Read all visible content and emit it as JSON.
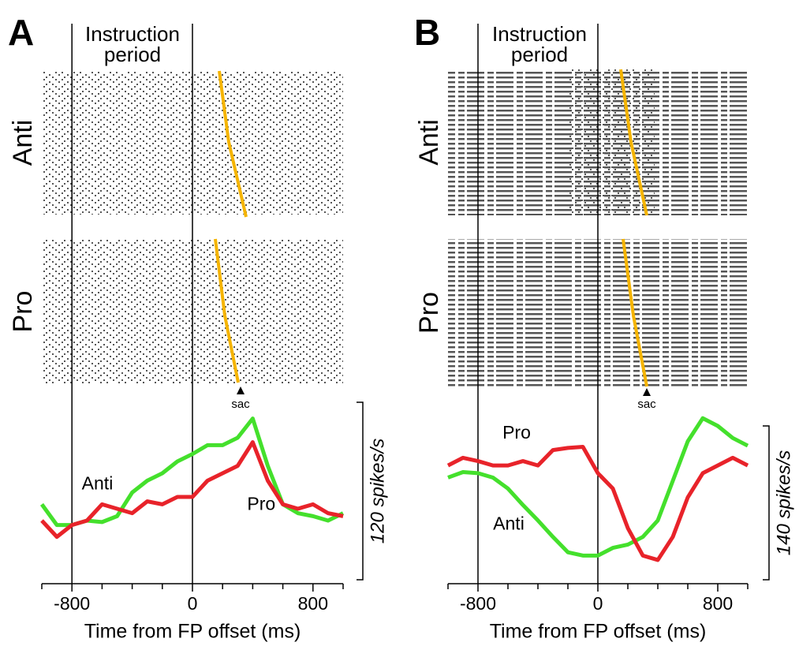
{
  "chart_data": [
    {
      "type": "line",
      "title": "A",
      "instruction_label": [
        "Instruction",
        "period"
      ],
      "saccade_label": "sac",
      "x_label": "Time from FP offset (ms)",
      "scale_bar_label": "120 spikes/s",
      "xlim": [
        -1000,
        1000
      ],
      "xticks": [
        -800,
        0,
        800
      ],
      "minor_xticks": [
        -1000,
        -600,
        -400,
        -200,
        200,
        400,
        600,
        1000
      ],
      "markers": [
        -800,
        0
      ],
      "ylim": [
        0,
        120
      ],
      "x": [
        -1000,
        -900,
        -800,
        -700,
        -600,
        -500,
        -400,
        -300,
        -200,
        -100,
        0,
        100,
        200,
        300,
        400,
        500,
        600,
        700,
        800,
        900,
        1000
      ],
      "series": [
        {
          "name": "Anti",
          "color": "#44e02c",
          "values": [
            51,
            37,
            37,
            40,
            39,
            43,
            59,
            67,
            72,
            80,
            85,
            91,
            91,
            96,
            109,
            77,
            51,
            45,
            43,
            40,
            45
          ]
        },
        {
          "name": "Pro",
          "color": "#e8232a",
          "values": [
            40,
            29,
            37,
            40,
            51,
            48,
            45,
            53,
            51,
            56,
            56,
            67,
            72,
            77,
            93,
            67,
            51,
            48,
            51,
            45,
            43
          ]
        }
      ]
    },
    {
      "type": "line",
      "title": "B",
      "instruction_label": [
        "Instruction",
        "period"
      ],
      "saccade_label": "sac",
      "x_label": "Time from FP offset (ms)",
      "scale_bar_label": "140 spikes/s",
      "xlim": [
        -1000,
        1000
      ],
      "xticks": [
        -800,
        0,
        800
      ],
      "minor_xticks": [
        -1000,
        -600,
        -400,
        -200,
        200,
        400,
        600,
        1000
      ],
      "markers": [
        -800,
        0
      ],
      "ylim": [
        0,
        140
      ],
      "x": [
        -1000,
        -900,
        -800,
        -700,
        -600,
        -500,
        -400,
        -300,
        -200,
        -100,
        0,
        100,
        200,
        300,
        400,
        500,
        600,
        700,
        800,
        900,
        1000
      ],
      "series": [
        {
          "name": "Anti",
          "color": "#44e02c",
          "values": [
            93,
            98,
            97,
            93,
            83,
            68,
            54,
            39,
            25,
            22,
            22,
            29,
            32,
            39,
            54,
            90,
            126,
            147,
            140,
            129,
            122
          ]
        },
        {
          "name": "Pro",
          "color": "#e8232a",
          "values": [
            104,
            111,
            108,
            104,
            104,
            108,
            104,
            118,
            120,
            121,
            97,
            83,
            47,
            22,
            18,
            39,
            75,
            97,
            104,
            111,
            104
          ]
        }
      ]
    }
  ]
}
